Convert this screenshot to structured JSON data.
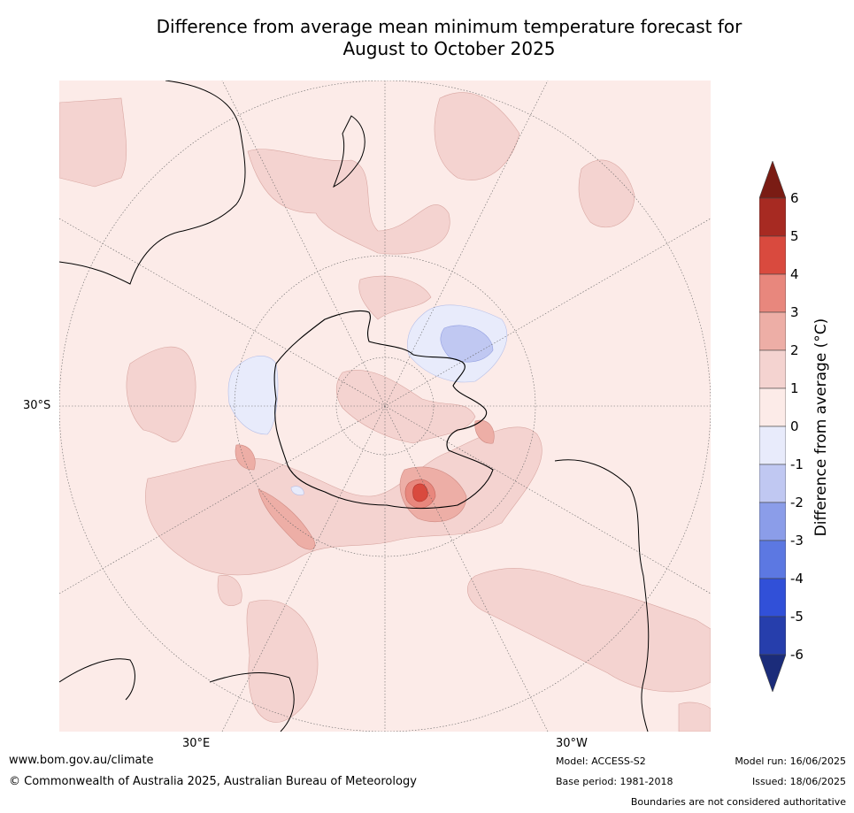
{
  "title_line1": "Difference from average mean minimum temperature forecast for",
  "title_line2": "August to October 2025",
  "axis_labels": {
    "lat": "30°S",
    "lon_east": "30°E",
    "lon_west": "30°W"
  },
  "colorbar": {
    "label": "Difference from average (°C)",
    "ticks": [
      "6",
      "5",
      "4",
      "3",
      "2",
      "1",
      "0",
      "-1",
      "-2",
      "-3",
      "-4",
      "-5",
      "-6"
    ],
    "colors": {
      "above_6": "#7a1c14",
      "5_to_6": "#a72a22",
      "4_to_5": "#d94a3e",
      "3_to_4": "#e8877d",
      "2_to_3": "#edaea6",
      "1_to_2": "#f4d3d0",
      "0_to_1": "#fcebe8",
      "m1_to_0": "#e8ebfb",
      "m2_to_m1": "#c0c8f2",
      "m3_to_m2": "#8b9de9",
      "m4_to_m3": "#5c78e2",
      "m5_to_m4": "#3150d8",
      "m6_to_m5": "#263eac",
      "below_m6": "#1b2c7a"
    }
  },
  "footer": {
    "site": "www.bom.gov.au/climate",
    "copyright": "© Commonwealth of Australia 2025, Australian Bureau of Meteorology",
    "model": "Model: ACCESS-S2",
    "base_period": "Base period: 1981-2018",
    "model_run": "Model run: 16/06/2025",
    "issued": "Issued: 18/06/2025",
    "disclaimer": "Boundaries are not considered authoritative"
  }
}
